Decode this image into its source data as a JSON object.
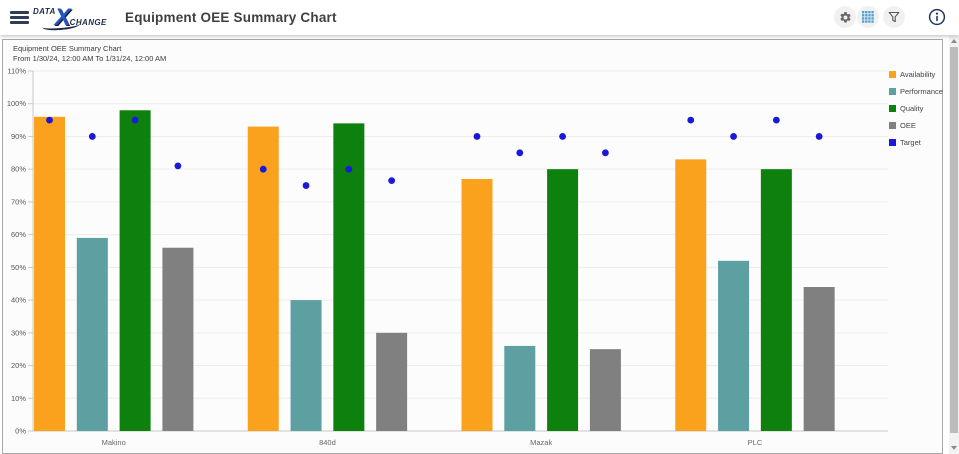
{
  "header": {
    "title": "Equipment OEE Summary Chart",
    "logo": {
      "part1": "DATA",
      "x": "X",
      "part2": "CHANGE"
    },
    "icons": [
      "hamburger-menu",
      "gear",
      "grid",
      "funnel-filter",
      "info"
    ],
    "icon_colors": {
      "grid": "#4E9CD5",
      "gear": "#666666",
      "funnel": "#555555",
      "info": "#1F3864"
    }
  },
  "chart_data": {
    "type": "bar",
    "title": "Equipment OEE Summary Chart",
    "subtitle": "From 1/30/24, 12:00 AM To 1/31/24, 12:00 AM",
    "categories": [
      "Makino",
      "840d",
      "Mazak",
      "PLC"
    ],
    "series": [
      {
        "name": "Availability",
        "type": "bar",
        "color": "#FAA21E",
        "values": [
          96,
          93,
          77,
          83
        ]
      },
      {
        "name": "Performance",
        "type": "bar",
        "color": "#5EA0A2",
        "values": [
          59,
          40,
          26,
          52
        ]
      },
      {
        "name": "Quality",
        "type": "bar",
        "color": "#0E800E",
        "values": [
          98,
          94,
          80,
          80
        ]
      },
      {
        "name": "OEE",
        "type": "bar",
        "color": "#808080",
        "values": [
          56,
          30,
          25,
          44
        ]
      },
      {
        "name": "Target",
        "type": "point",
        "color": "#1A1AD6",
        "values_per_bar": [
          [
            95,
            90,
            95,
            81
          ],
          [
            80,
            75,
            80,
            76.5
          ],
          [
            90,
            85,
            90,
            85
          ],
          [
            95,
            90,
            95,
            90
          ]
        ]
      }
    ],
    "y_axis": {
      "min": 0,
      "max": 110,
      "step": 10,
      "format": "percent"
    },
    "grid": true,
    "legend_position": "top-right",
    "legend_entries": [
      "Availability",
      "Performance",
      "Quality",
      "OEE",
      "Target"
    ]
  }
}
